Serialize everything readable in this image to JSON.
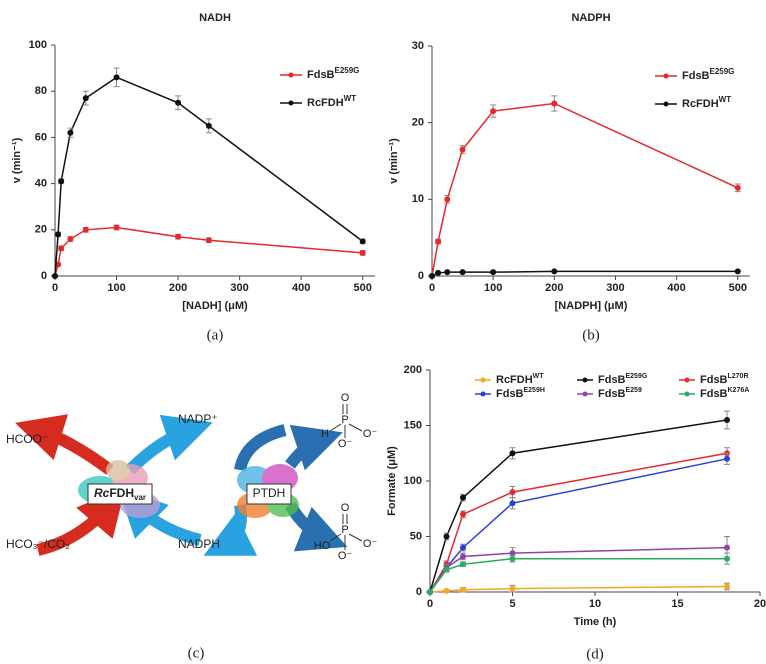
{
  "chart_data": [
    {
      "type": "line",
      "panel_label": "(a)",
      "title": "NADH",
      "x_label": "[NADH] (μM)",
      "y_label": "v (min⁻¹)",
      "x": [
        0,
        5,
        10,
        25,
        50,
        100,
        200,
        250,
        500
      ],
      "xlim": [
        0,
        520
      ],
      "xticks": [
        0,
        100,
        200,
        300,
        400,
        500
      ],
      "ylim": [
        0,
        100
      ],
      "yticks": [
        0,
        20,
        40,
        60,
        80,
        100
      ],
      "legend": "upper right",
      "legend_columns": 1,
      "series": [
        {
          "name": "FdsB",
          "name_sup": "E259G",
          "color": "#e8282b",
          "values": [
            0,
            5,
            12,
            16,
            20,
            21,
            17,
            15.5,
            10
          ],
          "errors": [
            0,
            0.5,
            1,
            1,
            1,
            1,
            1,
            1,
            1
          ]
        },
        {
          "name": "RcFDH",
          "name_sup": "WT",
          "color": "#111111",
          "values": [
            0,
            18,
            41,
            62,
            77,
            86,
            75,
            65,
            15
          ],
          "errors": [
            0,
            1,
            1,
            2,
            3,
            4,
            3,
            3,
            1
          ]
        }
      ]
    },
    {
      "type": "line",
      "panel_label": "(b)",
      "title": "NADPH",
      "x_label": "[NADPH] (μM)",
      "y_label": "v (min⁻¹)",
      "x": [
        0,
        10,
        25,
        50,
        100,
        200,
        500
      ],
      "xlim": [
        0,
        520
      ],
      "xticks": [
        0,
        100,
        200,
        300,
        400,
        500
      ],
      "ylim": [
        0,
        30
      ],
      "yticks": [
        0,
        10,
        20,
        30
      ],
      "legend": "upper right",
      "legend_columns": 1,
      "series": [
        {
          "name": "FdsB",
          "name_sup": "E259G",
          "color": "#e8282b",
          "values": [
            0,
            4.5,
            10,
            16.5,
            21.5,
            22.5,
            11.5
          ],
          "errors": [
            0,
            0.3,
            0.5,
            0.5,
            0.8,
            1,
            0.5
          ]
        },
        {
          "name": "RcFDH",
          "name_sup": "WT",
          "color": "#111111",
          "values": [
            0,
            0.4,
            0.5,
            0.5,
            0.5,
            0.6,
            0.6
          ],
          "errors": [
            0,
            0.1,
            0.1,
            0.1,
            0.1,
            0.1,
            0.1
          ]
        }
      ]
    },
    {
      "type": "line",
      "panel_label": "(d)",
      "x_label": "Time (h)",
      "y_label": "Formate (μM)",
      "x": [
        0,
        1,
        2,
        5,
        18
      ],
      "xlim": [
        0,
        20
      ],
      "xticks": [
        0,
        5,
        10,
        15,
        20
      ],
      "ylim": [
        0,
        200
      ],
      "yticks": [
        0,
        50,
        100,
        150,
        200
      ],
      "legend": "top",
      "legend_columns": 3,
      "series": [
        {
          "name": "RcFDH",
          "name_sup": "WT",
          "color": "#f5a623",
          "values": [
            0,
            1,
            2,
            3,
            5
          ],
          "errors": [
            0,
            1,
            2,
            3,
            3
          ]
        },
        {
          "name": "FdsB",
          "name_sup": "E259G",
          "color": "#111111",
          "values": [
            0,
            50,
            85,
            125,
            155
          ],
          "errors": [
            0,
            3,
            3,
            5,
            8
          ]
        },
        {
          "name": "FdsB",
          "name_sup": "L270R",
          "color": "#e8282b",
          "values": [
            0,
            25,
            70,
            90,
            125
          ],
          "errors": [
            0,
            3,
            3,
            5,
            5
          ]
        },
        {
          "name": "FdsB",
          "name_sup": "E259H",
          "color": "#2a3fe0",
          "values": [
            0,
            22,
            40,
            80,
            120
          ],
          "errors": [
            0,
            3,
            3,
            5,
            5
          ]
        },
        {
          "name": "FdsB",
          "name_sup": "E259",
          "color": "#8e44ad",
          "values": [
            0,
            22,
            32,
            35,
            40
          ],
          "errors": [
            0,
            2,
            3,
            5,
            10
          ]
        },
        {
          "name": "FdsB",
          "name_sup": "K276A",
          "color": "#27ae60",
          "values": [
            0,
            20,
            25,
            30,
            30
          ],
          "errors": [
            0,
            2,
            2,
            3,
            5
          ]
        }
      ]
    }
  ],
  "diagram": {
    "panel_label": "(c)",
    "labels": {
      "formate": "HCOO⁻",
      "nadp": "NADP⁺",
      "nadph": "NADPH",
      "bicarbonate": "HCO₃⁻/CO₂",
      "enzyme1_italic": "Rc",
      "enzyme1": "FDH",
      "enzyme1_sub": "var",
      "enzyme2": "PTDH"
    },
    "phosphite": {
      "h": "H",
      "p": "P",
      "o_top": "O",
      "o_right": "O⁻",
      "o_bottom": "O⁻"
    },
    "phosphate": {
      "ho": "HO",
      "p": "P",
      "o_top": "O",
      "o_right": "O⁻",
      "o_bottom": "O⁻"
    }
  }
}
